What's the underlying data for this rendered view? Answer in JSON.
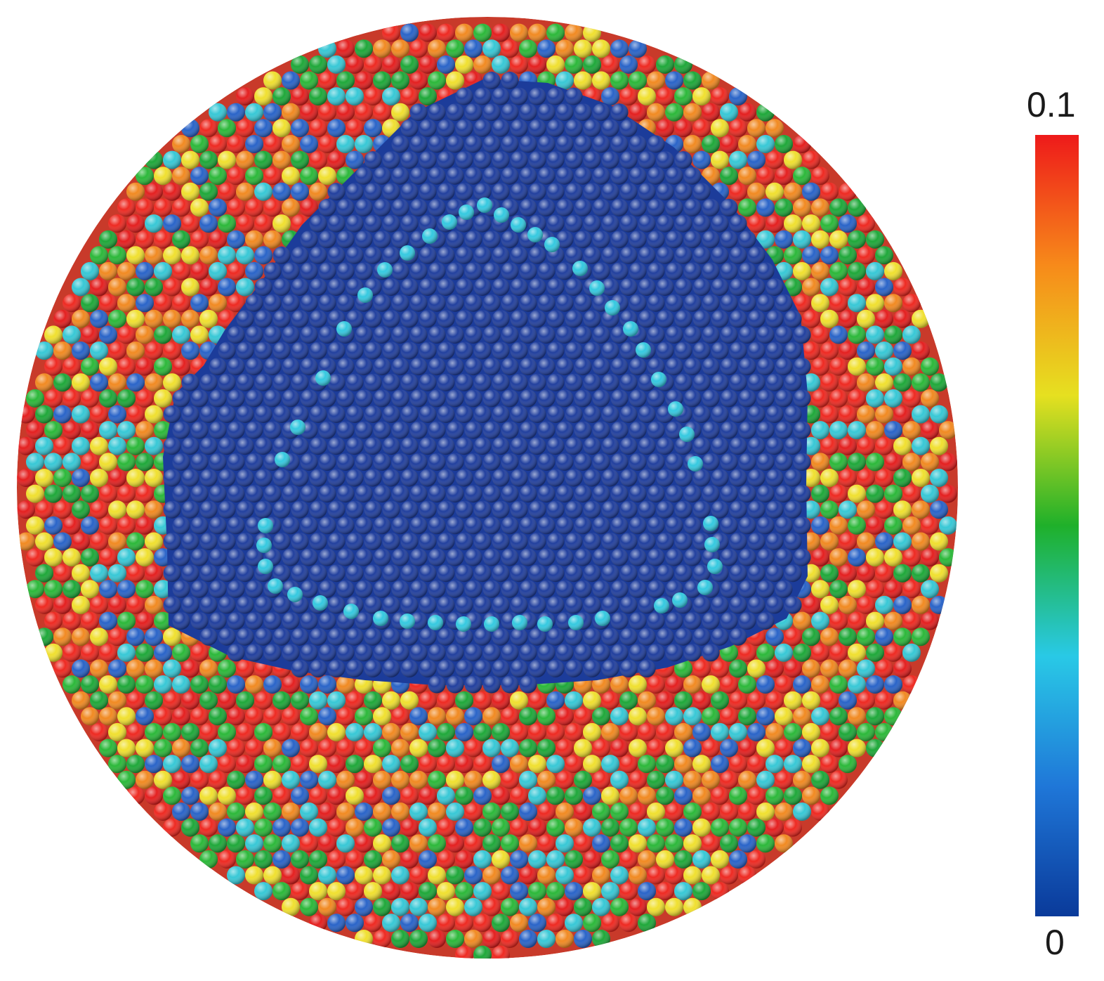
{
  "colorbar": {
    "max_label": "0.1",
    "min_label": "0",
    "max_value": 0.1,
    "min_value": 0,
    "stops": [
      "#0a3a9a",
      "#1f77d8",
      "#29c9e6",
      "#1fb02a",
      "#e6e020",
      "#f78a1a",
      "#ee1a1a"
    ]
  },
  "scene": {
    "inner_color": "#1c3c9a",
    "ring_dot_color": "#35c9e0",
    "shell_palette": [
      "#ee2a22",
      "#ee2a22",
      "#e42020",
      "#1fa83a",
      "#2cb83a",
      "#f0e030",
      "#f18a22",
      "#38c8d6",
      "#2a64c8"
    ]
  }
}
